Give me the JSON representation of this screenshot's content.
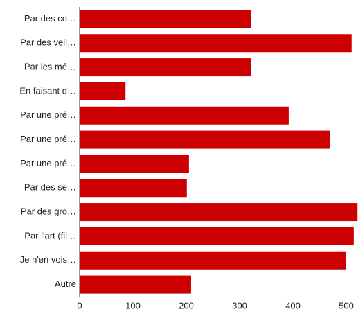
{
  "chart_data": {
    "type": "bar",
    "orientation": "horizontal",
    "categories": [
      "Par des co…",
      "Par des veil…",
      "Par les mé…",
      "En faisant d…",
      "Par une pré…",
      "Par une pré…",
      "Par une pré…",
      "Par des se…",
      "Par des gro…",
      "Par l'art (fil…",
      "Je n'en vois…",
      "Autre"
    ],
    "values": [
      322,
      510,
      322,
      86,
      392,
      469,
      205,
      201,
      521,
      514,
      499,
      209
    ],
    "color": "#cc0000",
    "xlim": [
      0,
      522
    ],
    "xticks": [
      0,
      100,
      200,
      300,
      400,
      500
    ],
    "grid": false
  }
}
